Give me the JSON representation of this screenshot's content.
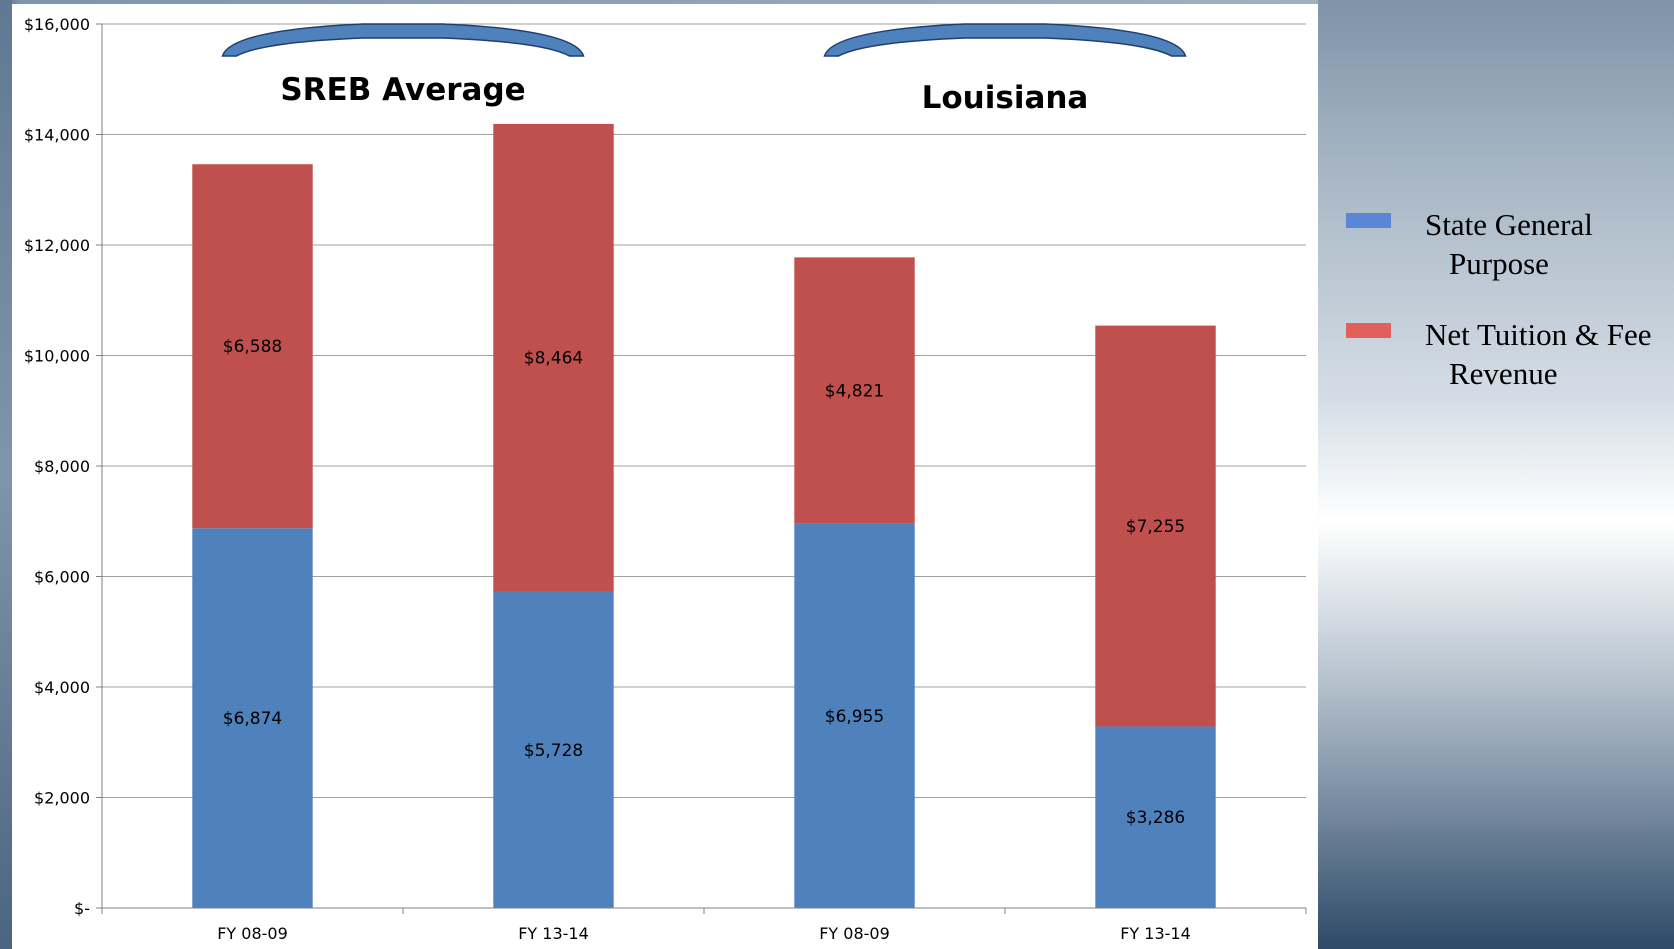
{
  "chart_data": {
    "type": "bar",
    "stacked": true,
    "categories": [
      "FY 08-09",
      "FY 13-14",
      "FY 08-09",
      "FY 13-14"
    ],
    "group_labels": [
      "SREB Average",
      "Louisiana"
    ],
    "series": [
      {
        "name": "State General Purpose",
        "color": "#4f81bd",
        "values": [
          6874,
          5728,
          6955,
          3286
        ],
        "labels": [
          "$6,874",
          "$5,728",
          "$6,955",
          "$3,286"
        ]
      },
      {
        "name": "Net Tuition & Fee Revenue",
        "color": "#c0504d",
        "values": [
          6588,
          8464,
          4821,
          7255
        ],
        "labels": [
          "$6,588",
          "$8,464",
          "$4,821",
          "$7,255"
        ]
      }
    ],
    "ylim": [
      0,
      16000
    ],
    "yticks": [
      0,
      2000,
      4000,
      6000,
      8000,
      10000,
      12000,
      14000,
      16000
    ],
    "ytick_labels": [
      "$-",
      "$2,000",
      "$4,000",
      "$6,000",
      "$8,000",
      "$10,000",
      "$12,000",
      "$14,000",
      "$16,000"
    ],
    "grid": true,
    "legend_position": "right"
  },
  "legend": {
    "items": [
      {
        "label": "State General Purpose",
        "color": "#5b86d6"
      },
      {
        "label": "Net Tuition & Fee Revenue",
        "color": "#e0605a"
      }
    ]
  },
  "colors": {
    "gridline": "#a0a0a0",
    "brace": "#4f81bd",
    "brace_outline": "#1f3f6e"
  }
}
